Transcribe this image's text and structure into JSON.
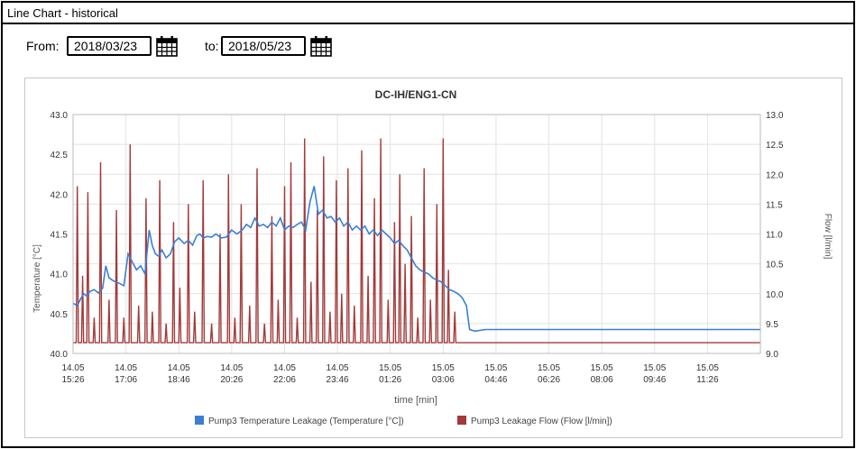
{
  "window": {
    "title": "Line Chart - historical"
  },
  "filter": {
    "from_label": "From:",
    "from_value": "2018/03/23",
    "to_label": "to:",
    "to_value": "2018/05/23",
    "calendar_icon": "calendar-icon"
  },
  "chart_data": {
    "type": "line",
    "title": "DC-IH/ENG1-CN",
    "xlabel": "time [min]",
    "ylabel_left": "Temperature [°C]",
    "ylabel_right": "Flow [l/min]",
    "ylim_left": [
      40.0,
      43.0
    ],
    "ylim_right": [
      9.0,
      13.0
    ],
    "yticks_left": [
      "40.0",
      "40.5",
      "41.0",
      "41.5",
      "42.0",
      "42.5",
      "43.0"
    ],
    "yticks_right": [
      "9.0",
      "9.5",
      "10.0",
      "10.5",
      "11.0",
      "11.5",
      "12.0",
      "12.5",
      "13.0"
    ],
    "xticks": [
      [
        "14.05",
        "15:26"
      ],
      [
        "14.05",
        "17:06"
      ],
      [
        "14.05",
        "18:46"
      ],
      [
        "14.05",
        "20:26"
      ],
      [
        "14.05",
        "22:06"
      ],
      [
        "14.05",
        "23:46"
      ],
      [
        "15.05",
        "01:26"
      ],
      [
        "15.05",
        "03:06"
      ],
      [
        "15.05",
        "04:46"
      ],
      [
        "15.05",
        "06:26"
      ],
      [
        "15.05",
        "08:06"
      ],
      [
        "15.05",
        "09:46"
      ],
      [
        "15.05",
        "11:26"
      ]
    ],
    "x_unit": "minutes from 14.05 15:26",
    "x_range": [
      0,
      1300
    ],
    "grid": true,
    "legend_position": "bottom",
    "series": [
      {
        "name": "Pump3 Temperature Leakage (Temperature [°C])",
        "axis": "left",
        "color": "#3a7fd5",
        "x": [
          0,
          8,
          14,
          20,
          26,
          32,
          40,
          48,
          56,
          62,
          68,
          74,
          80,
          88,
          96,
          104,
          112,
          120,
          128,
          136,
          144,
          150,
          156,
          162,
          168,
          176,
          184,
          192,
          200,
          210,
          218,
          226,
          234,
          240,
          246,
          254,
          262,
          270,
          280,
          290,
          300,
          310,
          320,
          328,
          336,
          344,
          352,
          360,
          368,
          376,
          384,
          392,
          400,
          408,
          416,
          424,
          432,
          440,
          448,
          456,
          464,
          472,
          480,
          488,
          496,
          504,
          512,
          520,
          528,
          536,
          544,
          552,
          560,
          568,
          576,
          584,
          592,
          600,
          608,
          616,
          624,
          632,
          640,
          648,
          656,
          664,
          672,
          680,
          688,
          696,
          704,
          712,
          720,
          728,
          736,
          744,
          750,
          760,
          780,
          820,
          860,
          900,
          950,
          1000,
          1050,
          1100,
          1150,
          1200,
          1250,
          1300
        ],
        "y": [
          40.63,
          40.6,
          40.68,
          40.75,
          40.72,
          40.78,
          40.8,
          40.76,
          40.82,
          41.1,
          40.95,
          40.92,
          40.9,
          40.88,
          40.85,
          41.25,
          41.15,
          41.05,
          41.1,
          41.0,
          41.55,
          41.35,
          41.25,
          41.22,
          41.3,
          41.2,
          41.25,
          41.4,
          41.45,
          41.38,
          41.42,
          41.36,
          41.48,
          41.5,
          41.45,
          41.47,
          41.46,
          41.5,
          41.45,
          41.46,
          41.55,
          41.5,
          41.55,
          41.62,
          41.58,
          41.7,
          41.6,
          41.62,
          41.58,
          41.65,
          41.6,
          41.7,
          41.55,
          41.6,
          41.58,
          41.62,
          41.65,
          41.55,
          41.9,
          42.1,
          41.75,
          41.8,
          41.7,
          41.72,
          41.65,
          41.7,
          41.6,
          41.65,
          41.55,
          41.6,
          41.55,
          41.6,
          41.5,
          41.55,
          41.48,
          41.55,
          41.5,
          41.45,
          41.38,
          41.42,
          41.35,
          41.3,
          41.2,
          41.1,
          41.05,
          41.02,
          41.0,
          40.95,
          40.92,
          40.9,
          40.85,
          40.8,
          40.78,
          40.75,
          40.7,
          40.6,
          40.3,
          40.28,
          40.3,
          40.3,
          40.3,
          40.3,
          40.3,
          40.3,
          40.3,
          40.3,
          40.3,
          40.3,
          40.3,
          40.3
        ]
      },
      {
        "name": "Pump3 Leakage Flow (Flow [l/min])",
        "axis": "right",
        "color": "#a33a3a",
        "baseline": 9.18,
        "spikes_x": [
          8,
          18,
          28,
          40,
          52,
          68,
          82,
          96,
          108,
          124,
          138,
          150,
          164,
          176,
          190,
          202,
          218,
          230,
          246,
          262,
          278,
          294,
          306,
          318,
          334,
          348,
          362,
          376,
          388,
          400,
          412,
          424,
          438,
          450,
          462,
          474,
          486,
          498,
          508,
          520,
          532,
          546,
          558,
          570,
          582,
          596,
          608,
          618,
          628,
          640,
          652,
          664,
          676,
          688,
          700,
          710,
          722
        ],
        "spikes_y": [
          11.8,
          10.3,
          11.7,
          9.6,
          12.2,
          9.9,
          11.4,
          9.6,
          12.5,
          9.8,
          11.6,
          9.7,
          11.9,
          9.5,
          11.2,
          10.1,
          11.5,
          9.7,
          11.9,
          9.5,
          11.0,
          12.0,
          9.6,
          11.5,
          9.8,
          12.1,
          9.5,
          11.3,
          9.9,
          11.8,
          12.2,
          9.6,
          12.6,
          10.2,
          11.4,
          12.3,
          9.7,
          11.9,
          10.0,
          12.1,
          9.8,
          12.4,
          10.3,
          11.6,
          12.6,
          9.9,
          11.2,
          12.0,
          10.5,
          11.3,
          9.6,
          12.1,
          9.9,
          11.5,
          12.6,
          10.4,
          9.7
        ],
        "tail_x": [
          730,
          1300
        ],
        "tail_y": [
          9.18,
          9.18
        ]
      }
    ]
  }
}
